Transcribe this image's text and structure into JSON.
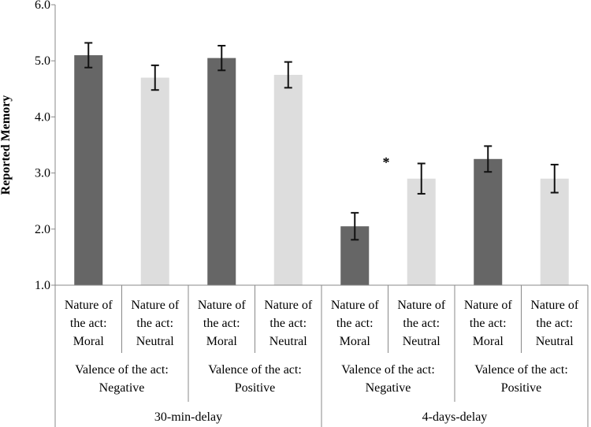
{
  "chart_data": {
    "type": "bar",
    "ylabel": "Reported Memory",
    "ylim": [
      1.0,
      6.0
    ],
    "yticks": [
      "1.0",
      "2.0",
      "3.0",
      "4.0",
      "5.0",
      "6.0"
    ],
    "categories": [
      "Nature of the act: Moral",
      "Nature of the act: Neutral",
      "Nature of the act: Moral",
      "Nature of the act: Neutral",
      "Nature of the act: Moral",
      "Nature of the act: Neutral",
      "Nature of the act: Moral",
      "Nature of the act: Neutral"
    ],
    "category_lines": [
      [
        "Nature of",
        "the act:",
        "Moral"
      ],
      [
        "Nature of",
        "the act:",
        "Neutral"
      ],
      [
        "Nature of",
        "the act:",
        "Moral"
      ],
      [
        "Nature of",
        "the act:",
        "Neutral"
      ],
      [
        "Nature of",
        "the act:",
        "Moral"
      ],
      [
        "Nature of",
        "the act:",
        "Neutral"
      ],
      [
        "Nature of",
        "the act:",
        "Moral"
      ],
      [
        "Nature of",
        "the act:",
        "Neutral"
      ]
    ],
    "values": [
      5.1,
      4.7,
      5.05,
      4.75,
      2.05,
      2.9,
      3.25,
      2.9
    ],
    "errors": [
      0.22,
      0.22,
      0.22,
      0.23,
      0.24,
      0.27,
      0.23,
      0.25
    ],
    "bar_colors": [
      "#666666",
      "#dddddd",
      "#666666",
      "#dddddd",
      "#666666",
      "#dddddd",
      "#666666",
      "#dddddd"
    ],
    "valence_groups": [
      [
        "Valence of the act:",
        "Negative"
      ],
      [
        "Valence of the act:",
        "Positive"
      ],
      [
        "Valence of the act:",
        "Negative"
      ],
      [
        "Valence of the act:",
        "Positive"
      ]
    ],
    "delay_groups": [
      "30-min-delay",
      "4-days-delay"
    ],
    "annotation": {
      "text": "*",
      "between_bars": [
        4,
        5
      ]
    }
  }
}
